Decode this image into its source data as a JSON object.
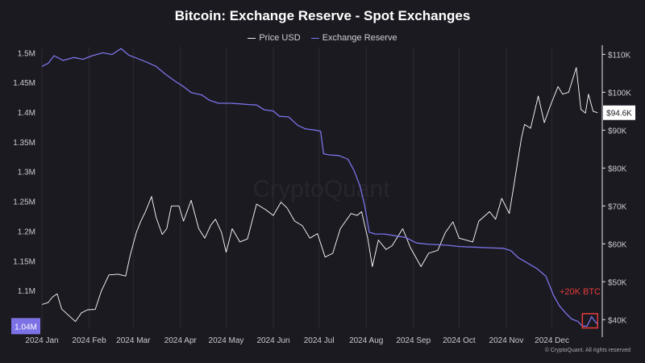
{
  "chart_data": {
    "type": "line",
    "title": "Bitcoin: Exchange Reserve - Spot Exchanges",
    "legend": "top-center",
    "watermark": "CryptoQuant",
    "copyright": "© CryptoQuant. All rights reserved",
    "x_ticks": [
      "2024 Jan",
      "2024 Feb",
      "2024 Mar",
      "2024 Apr",
      "2024 May",
      "2024 Jun",
      "2024 Jul",
      "2024 Aug",
      "2024 Sep",
      "2024 Oct",
      "2024 Nov",
      "2024 Dec"
    ],
    "x_dates": [
      "2024-01-01",
      "2024-02-01",
      "2024-03-01",
      "2024-04-01",
      "2024-05-01",
      "2024-06-01",
      "2024-07-01",
      "2024-08-01",
      "2024-09-01",
      "2024-10-01",
      "2024-11-01",
      "2024-12-01"
    ],
    "x_range": [
      "2024-01-01",
      "2025-01-02"
    ],
    "left_axis": {
      "ticks": [
        "1.1M",
        "1.15M",
        "1.2M",
        "1.25M",
        "1.3M",
        "1.35M",
        "1.4M",
        "1.45M",
        "1.5M"
      ],
      "tick_values": [
        1100000,
        1150000,
        1200000,
        1250000,
        1300000,
        1350000,
        1400000,
        1450000,
        1500000
      ],
      "range": [
        1035000,
        1510000
      ],
      "current_label": "1.04M",
      "current_value": 1040000
    },
    "right_axis": {
      "ticks": [
        "$40K",
        "$50K",
        "$60K",
        "$70K",
        "$80K",
        "$90K",
        "$100K",
        "$110K"
      ],
      "tick_values": [
        40000,
        50000,
        60000,
        70000,
        80000,
        90000,
        100000,
        110000
      ],
      "range": [
        37500,
        112000
      ],
      "current_label": "$94.6K",
      "current_value": 94600
    },
    "series": [
      {
        "name": "Price USD",
        "color": "#ffffff",
        "axis": "right",
        "points": [
          [
            "2024-01-01",
            44000
          ],
          [
            "2024-01-05",
            44500
          ],
          [
            "2024-01-08",
            46000
          ],
          [
            "2024-01-11",
            46800
          ],
          [
            "2024-01-14",
            42800
          ],
          [
            "2024-01-18",
            41300
          ],
          [
            "2024-01-23",
            39500
          ],
          [
            "2024-01-27",
            41800
          ],
          [
            "2024-01-31",
            42600
          ],
          [
            "2024-02-05",
            42700
          ],
          [
            "2024-02-09",
            47500
          ],
          [
            "2024-02-14",
            51800
          ],
          [
            "2024-02-20",
            52000
          ],
          [
            "2024-02-25",
            51500
          ],
          [
            "2024-02-28",
            57000
          ],
          [
            "2024-03-03",
            63000
          ],
          [
            "2024-03-06",
            66000
          ],
          [
            "2024-03-09",
            68500
          ],
          [
            "2024-03-13",
            72500
          ],
          [
            "2024-03-16",
            67000
          ],
          [
            "2024-03-20",
            62500
          ],
          [
            "2024-03-23",
            64000
          ],
          [
            "2024-03-26",
            70000
          ],
          [
            "2024-03-31",
            70000
          ],
          [
            "2024-04-03",
            66000
          ],
          [
            "2024-04-08",
            71500
          ],
          [
            "2024-04-13",
            64000
          ],
          [
            "2024-04-17",
            61500
          ],
          [
            "2024-04-21",
            65000
          ],
          [
            "2024-04-24",
            66500
          ],
          [
            "2024-04-28",
            63000
          ],
          [
            "2024-05-01",
            57800
          ],
          [
            "2024-05-05",
            64000
          ],
          [
            "2024-05-10",
            60500
          ],
          [
            "2024-05-15",
            61300
          ],
          [
            "2024-05-21",
            70500
          ],
          [
            "2024-05-27",
            69000
          ],
          [
            "2024-06-01",
            67500
          ],
          [
            "2024-06-06",
            71000
          ],
          [
            "2024-06-10",
            69500
          ],
          [
            "2024-06-15",
            66000
          ],
          [
            "2024-06-20",
            64800
          ],
          [
            "2024-06-25",
            61500
          ],
          [
            "2024-06-30",
            62700
          ],
          [
            "2024-07-05",
            56500
          ],
          [
            "2024-07-10",
            57500
          ],
          [
            "2024-07-15",
            64000
          ],
          [
            "2024-07-22",
            68000
          ],
          [
            "2024-07-26",
            67500
          ],
          [
            "2024-07-29",
            68500
          ],
          [
            "2024-08-02",
            61500
          ],
          [
            "2024-08-05",
            54000
          ],
          [
            "2024-08-09",
            61000
          ],
          [
            "2024-08-14",
            58500
          ],
          [
            "2024-08-18",
            59500
          ],
          [
            "2024-08-25",
            64000
          ],
          [
            "2024-08-30",
            59000
          ],
          [
            "2024-09-06",
            54000
          ],
          [
            "2024-09-11",
            57500
          ],
          [
            "2024-09-17",
            58300
          ],
          [
            "2024-09-22",
            63000
          ],
          [
            "2024-09-27",
            65800
          ],
          [
            "2024-10-01",
            61500
          ],
          [
            "2024-10-10",
            60500
          ],
          [
            "2024-10-14",
            66000
          ],
          [
            "2024-10-21",
            68500
          ],
          [
            "2024-10-25",
            66500
          ],
          [
            "2024-10-29",
            72000
          ],
          [
            "2024-11-03",
            68000
          ],
          [
            "2024-11-06",
            75500
          ],
          [
            "2024-11-11",
            88000
          ],
          [
            "2024-11-13",
            91500
          ],
          [
            "2024-11-17",
            90500
          ],
          [
            "2024-11-22",
            99000
          ],
          [
            "2024-11-26",
            92000
          ],
          [
            "2024-11-30",
            96500
          ],
          [
            "2024-12-05",
            101500
          ],
          [
            "2024-12-08",
            99500
          ],
          [
            "2024-12-12",
            100000
          ],
          [
            "2024-12-17",
            106500
          ],
          [
            "2024-12-20",
            95500
          ],
          [
            "2024-12-23",
            94500
          ],
          [
            "2024-12-25",
            99500
          ],
          [
            "2024-12-28",
            95000
          ],
          [
            "2024-12-31",
            94600
          ]
        ]
      },
      {
        "name": "Exchange Reserve",
        "color": "#7b73e8",
        "axis": "left",
        "points": [
          [
            "2024-01-01",
            1477000
          ],
          [
            "2024-01-05",
            1482000
          ],
          [
            "2024-01-09",
            1495000
          ],
          [
            "2024-01-15",
            1487000
          ],
          [
            "2024-01-22",
            1492000
          ],
          [
            "2024-01-28",
            1489000
          ],
          [
            "2024-02-03",
            1495000
          ],
          [
            "2024-02-10",
            1500000
          ],
          [
            "2024-02-16",
            1497000
          ],
          [
            "2024-02-22",
            1507000
          ],
          [
            "2024-02-27",
            1496000
          ],
          [
            "2024-03-04",
            1490000
          ],
          [
            "2024-03-10",
            1484000
          ],
          [
            "2024-03-16",
            1477000
          ],
          [
            "2024-03-22",
            1464000
          ],
          [
            "2024-03-28",
            1453000
          ],
          [
            "2024-04-03",
            1443000
          ],
          [
            "2024-04-08",
            1433000
          ],
          [
            "2024-04-15",
            1429000
          ],
          [
            "2024-04-20",
            1420000
          ],
          [
            "2024-04-26",
            1415000
          ],
          [
            "2024-05-03",
            1415000
          ],
          [
            "2024-05-10",
            1414000
          ],
          [
            "2024-05-15",
            1413000
          ],
          [
            "2024-05-21",
            1412000
          ],
          [
            "2024-05-26",
            1404000
          ],
          [
            "2024-06-01",
            1402000
          ],
          [
            "2024-06-05",
            1393000
          ],
          [
            "2024-06-11",
            1392000
          ],
          [
            "2024-06-17",
            1378000
          ],
          [
            "2024-06-22",
            1372000
          ],
          [
            "2024-06-28",
            1370000
          ],
          [
            "2024-07-02",
            1368000
          ],
          [
            "2024-07-04",
            1330000
          ],
          [
            "2024-07-08",
            1328000
          ],
          [
            "2024-07-14",
            1327000
          ],
          [
            "2024-07-20",
            1321000
          ],
          [
            "2024-07-24",
            1302000
          ],
          [
            "2024-07-28",
            1275000
          ],
          [
            "2024-07-31",
            1243000
          ],
          [
            "2024-08-03",
            1198000
          ],
          [
            "2024-08-07",
            1195000
          ],
          [
            "2024-08-13",
            1195000
          ],
          [
            "2024-08-20",
            1192000
          ],
          [
            "2024-08-27",
            1189000
          ],
          [
            "2024-09-03",
            1180000
          ],
          [
            "2024-09-10",
            1178000
          ],
          [
            "2024-09-17",
            1177000
          ],
          [
            "2024-09-24",
            1176000
          ],
          [
            "2024-10-01",
            1174000
          ],
          [
            "2024-10-10",
            1173000
          ],
          [
            "2024-10-20",
            1172000
          ],
          [
            "2024-10-30",
            1171000
          ],
          [
            "2024-11-04",
            1167000
          ],
          [
            "2024-11-09",
            1155000
          ],
          [
            "2024-11-15",
            1146000
          ],
          [
            "2024-11-21",
            1137000
          ],
          [
            "2024-11-27",
            1124000
          ],
          [
            "2024-12-02",
            1092000
          ],
          [
            "2024-12-06",
            1074000
          ],
          [
            "2024-12-10",
            1062000
          ],
          [
            "2024-12-14",
            1052000
          ],
          [
            "2024-12-18",
            1048000
          ],
          [
            "2024-12-21",
            1040000
          ],
          [
            "2024-12-24",
            1040000
          ],
          [
            "2024-12-26",
            1050000
          ],
          [
            "2024-12-27",
            1056000
          ],
          [
            "2024-12-29",
            1049000
          ],
          [
            "2024-12-31",
            1043000
          ]
        ]
      }
    ],
    "annotation": {
      "text": "+20K BTC",
      "color": "#e53b3b",
      "box_from": "2024-12-21",
      "box_to": "2024-12-31",
      "box_values": [
        1037000,
        1061000
      ]
    }
  }
}
